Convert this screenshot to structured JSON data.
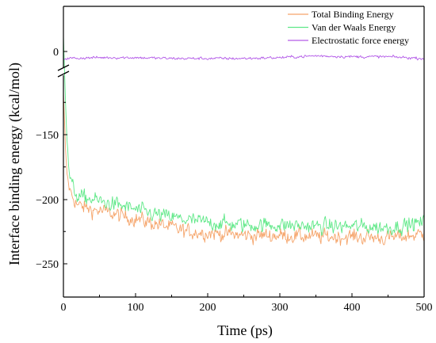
{
  "chart_data": {
    "type": "line",
    "xlabel": "Time (ps)",
    "ylabel": "Interface binding energy (kcal/mol)",
    "xlim": [
      0,
      500
    ],
    "x_ticks": [
      0,
      100,
      200,
      300,
      400,
      500
    ],
    "y_ticks": [
      0,
      -150,
      -200,
      -250
    ],
    "y_axis_break": {
      "upper_range": [
        -25,
        40
      ],
      "lower_range": [
        -275,
        -100
      ]
    },
    "grid": false,
    "legend_position": "top-right",
    "x_step": 1,
    "series": [
      {
        "name": "Total Binding Energy",
        "color": "#f5a46a",
        "keypoints": [
          [
            0,
            -120
          ],
          [
            2,
            -150
          ],
          [
            4,
            -175
          ],
          [
            6,
            -185
          ],
          [
            10,
            -195
          ],
          [
            15,
            -200
          ],
          [
            20,
            -205
          ],
          [
            40,
            -208
          ],
          [
            60,
            -210
          ],
          [
            80,
            -213
          ],
          [
            100,
            -215
          ],
          [
            120,
            -218
          ],
          [
            150,
            -222
          ],
          [
            170,
            -225
          ],
          [
            200,
            -226
          ],
          [
            250,
            -228
          ],
          [
            300,
            -228
          ],
          [
            350,
            -229
          ],
          [
            400,
            -229
          ],
          [
            450,
            -230
          ],
          [
            500,
            -227
          ]
        ],
        "noise": 8
      },
      {
        "name": "Van der Waals Energy",
        "color": "#5ee887",
        "keypoints": [
          [
            0,
            -70
          ],
          [
            2,
            -105
          ],
          [
            4,
            -140
          ],
          [
            6,
            -165
          ],
          [
            8,
            -180
          ],
          [
            12,
            -190
          ],
          [
            20,
            -198
          ],
          [
            40,
            -200
          ],
          [
            60,
            -203
          ],
          [
            80,
            -205
          ],
          [
            100,
            -208
          ],
          [
            120,
            -211
          ],
          [
            150,
            -214
          ],
          [
            170,
            -216
          ],
          [
            200,
            -218
          ],
          [
            250,
            -220
          ],
          [
            300,
            -220
          ],
          [
            350,
            -221
          ],
          [
            400,
            -221
          ],
          [
            450,
            -222
          ],
          [
            500,
            -218
          ]
        ],
        "noise": 8
      },
      {
        "name": "Electrostatic force energy",
        "color": "#b35ae8",
        "keypoints": [
          [
            0,
            -8
          ],
          [
            50,
            -7
          ],
          [
            100,
            -7
          ],
          [
            150,
            -8
          ],
          [
            200,
            -8
          ],
          [
            250,
            -8
          ],
          [
            300,
            -7
          ],
          [
            350,
            -5
          ],
          [
            400,
            -6
          ],
          [
            450,
            -6
          ],
          [
            500,
            -8
          ]
        ],
        "noise": 2.2
      }
    ]
  }
}
